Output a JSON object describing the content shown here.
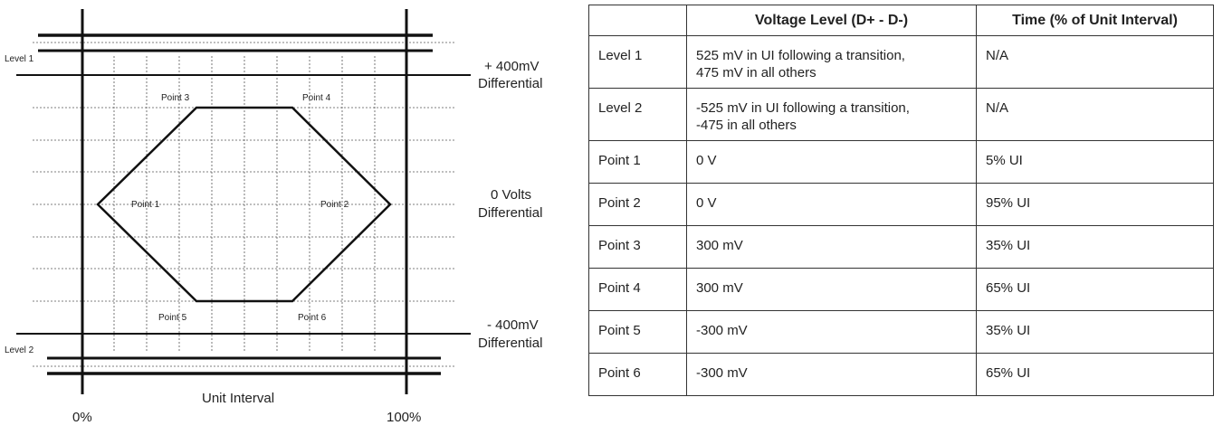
{
  "diagram": {
    "level1_label": "Level 1",
    "level2_label": "Level 2",
    "plus_label_line1": "+ 400mV",
    "plus_label_line2": "Differential",
    "zero_label_line1": "0 Volts",
    "zero_label_line2": "Differential",
    "minus_label_line1": "- 400mV",
    "minus_label_line2": "Differential",
    "points": {
      "p1": "Point 1",
      "p2": "Point 2",
      "p3": "Point 3",
      "p4": "Point 4",
      "p5": "Point 5",
      "p6": "Point 6"
    },
    "x_axis_label": "Unit Interval",
    "x_start": "0%",
    "x_end": "100%"
  },
  "table": {
    "headers": [
      "",
      "Voltage Level (D+ - D-)",
      "Time (% of Unit Interval)"
    ],
    "rows": [
      {
        "name": "Level 1",
        "voltage_line1": "525 mV in UI following a transition,",
        "voltage_line2": "475 mV in all others",
        "time": "N/A"
      },
      {
        "name": "Level 2",
        "voltage_line1": "-525 mV in UI following a transition,",
        "voltage_line2": "-475 in all others",
        "time": "N/A"
      },
      {
        "name": "Point 1",
        "voltage": "0 V",
        "time": "5% UI"
      },
      {
        "name": "Point 2",
        "voltage": "0 V",
        "time": "95% UI"
      },
      {
        "name": "Point 3",
        "voltage": "300 mV",
        "time": "35% UI"
      },
      {
        "name": "Point 4",
        "voltage": "300 mV",
        "time": "65% UI"
      },
      {
        "name": "Point 5",
        "voltage": "-300 mV",
        "time": "35% UI"
      },
      {
        "name": "Point 6",
        "voltage": "-300 mV",
        "time": "65% UI"
      }
    ]
  }
}
